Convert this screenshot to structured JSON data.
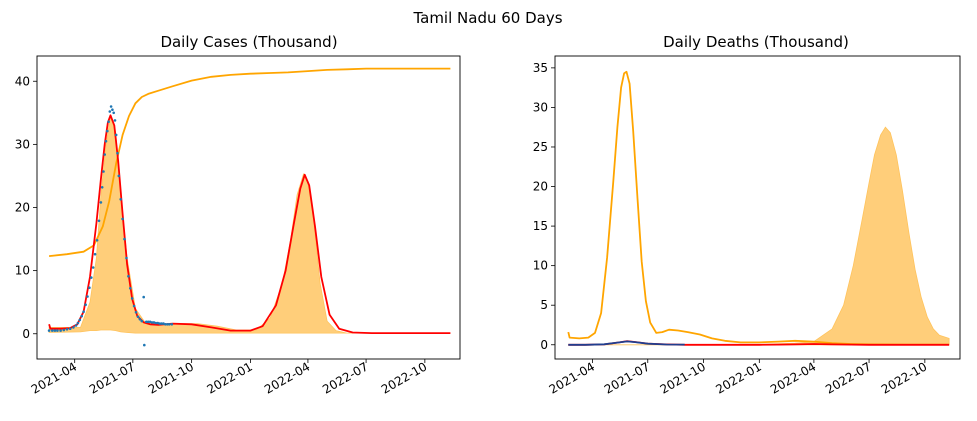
{
  "figure": {
    "suptitle": "Tamil Nadu 60 Days"
  },
  "colors": {
    "fill": "#ffce7a",
    "orange": "#ffa500",
    "red": "#ff0000",
    "dots": "#1f77b4",
    "navy": "#1f3f8f"
  },
  "chart_data": [
    {
      "type": "line",
      "title": "Daily Cases (Thousand)",
      "xlabel": "",
      "ylabel": "",
      "x_type": "date",
      "xlim": [
        "2021-02-01",
        "2022-11-25"
      ],
      "ylim": [
        -4,
        44
      ],
      "x_ticks": [
        "2021-04",
        "2021-07",
        "2021-10",
        "2022-01",
        "2022-04",
        "2022-07",
        "2022-10"
      ],
      "y_ticks": [
        0,
        10,
        20,
        30,
        40
      ],
      "grid": false,
      "fill_band": {
        "x": [
          "2021-02-20",
          "2021-04-10",
          "2021-04-25",
          "2021-05-05",
          "2021-05-12",
          "2021-05-20",
          "2021-05-27",
          "2021-06-04",
          "2021-06-12",
          "2021-06-22",
          "2021-07-05",
          "2021-07-20",
          "2021-08-10",
          "2021-09-10",
          "2021-10-10",
          "2021-11-10",
          "2021-12-10",
          "2022-01-10",
          "2022-02-01",
          "2022-02-20",
          "2022-03-05",
          "2022-03-15",
          "2022-03-25",
          "2022-04-01",
          "2022-04-10",
          "2022-04-20",
          "2022-05-01",
          "2022-05-15",
          "2022-06-01",
          "2022-07-01",
          "2022-09-01",
          "2022-11-10"
        ],
        "lower": [
          0.2,
          0.3,
          0.5,
          0.5,
          0.6,
          0.6,
          0.6,
          0.5,
          0.3,
          0.2,
          0.1,
          0.1,
          0.1,
          0.1,
          0.1,
          0.1,
          0.1,
          0.1,
          0.1,
          0.1,
          0.1,
          0.1,
          0.1,
          0.1,
          0.1,
          0.1,
          0.1,
          0.1,
          0.1,
          0.1,
          0.1,
          0.1
        ],
        "upper": [
          1.0,
          1.0,
          5.0,
          12.0,
          22.0,
          30.0,
          34.5,
          32.0,
          22.0,
          12.0,
          4.0,
          1.8,
          1.4,
          1.6,
          1.6,
          1.2,
          0.6,
          0.6,
          2.5,
          8.0,
          15.0,
          22.0,
          25.3,
          24.0,
          18.0,
          8.0,
          2.0,
          0.5,
          0.1,
          0.1,
          0.1,
          0.1
        ]
      },
      "series": [
        {
          "color": "#ffa500",
          "x": [
            "2021-02-20",
            "2021-03-20",
            "2021-04-15",
            "2021-05-01",
            "2021-05-15",
            "2021-05-25",
            "2021-06-05",
            "2021-06-15",
            "2021-06-25",
            "2021-07-05",
            "2021-07-15",
            "2021-07-25",
            "2021-08-10",
            "2021-09-01",
            "2021-10-01",
            "2021-11-01",
            "2021-12-01",
            "2022-01-01",
            "2022-02-01",
            "2022-03-01",
            "2022-04-01",
            "2022-05-01",
            "2022-06-01",
            "2022-07-01",
            "2022-08-01",
            "2022-09-01",
            "2022-10-01",
            "2022-11-10"
          ],
          "y": [
            12.3,
            12.6,
            13.0,
            14.0,
            17.0,
            21.0,
            27.0,
            31.5,
            34.5,
            36.5,
            37.5,
            38.0,
            38.5,
            39.2,
            40.1,
            40.7,
            41.0,
            41.2,
            41.3,
            41.4,
            41.6,
            41.8,
            41.9,
            42.0,
            42.0,
            42.0,
            42.0,
            42.0
          ]
        },
        {
          "color": "#ff0000",
          "x": [
            "2021-02-20",
            "2021-02-22",
            "2021-03-10",
            "2021-03-25",
            "2021-04-05",
            "2021-04-15",
            "2021-04-25",
            "2021-05-05",
            "2021-05-12",
            "2021-05-18",
            "2021-05-23",
            "2021-05-27",
            "2021-06-02",
            "2021-06-08",
            "2021-06-15",
            "2021-06-22",
            "2021-06-30",
            "2021-07-08",
            "2021-07-18",
            "2021-07-28",
            "2021-08-10",
            "2021-09-01",
            "2021-10-01",
            "2021-11-01",
            "2021-12-01",
            "2022-01-01",
            "2022-01-20",
            "2022-02-10",
            "2022-02-25",
            "2022-03-10",
            "2022-03-20",
            "2022-03-27",
            "2022-04-03",
            "2022-04-12",
            "2022-04-22",
            "2022-05-05",
            "2022-05-20",
            "2022-06-10",
            "2022-07-10",
            "2022-09-01",
            "2022-11-10"
          ],
          "y": [
            1.5,
            0.8,
            0.8,
            0.9,
            1.5,
            3.5,
            9.0,
            17.5,
            24.5,
            30.0,
            33.5,
            34.6,
            33.0,
            27.5,
            19.0,
            11.0,
            5.5,
            2.8,
            1.8,
            1.5,
            1.4,
            1.6,
            1.5,
            1.0,
            0.5,
            0.5,
            1.2,
            4.5,
            10.0,
            17.5,
            23.0,
            25.2,
            23.5,
            17.0,
            9.0,
            3.0,
            0.8,
            0.2,
            0.1,
            0.1,
            0.1
          ]
        }
      ],
      "scatter": {
        "color": "#1f77b4",
        "x": [
          "2021-02-20",
          "2021-02-25",
          "2021-03-01",
          "2021-03-05",
          "2021-03-10",
          "2021-03-15",
          "2021-03-20",
          "2021-03-25",
          "2021-03-30",
          "2021-04-03",
          "2021-04-06",
          "2021-04-09",
          "2021-04-12",
          "2021-04-15",
          "2021-04-18",
          "2021-04-21",
          "2021-04-24",
          "2021-04-27",
          "2021-04-30",
          "2021-05-03",
          "2021-05-06",
          "2021-05-09",
          "2021-05-12",
          "2021-05-14",
          "2021-05-16",
          "2021-05-18",
          "2021-05-20",
          "2021-05-22",
          "2021-05-24",
          "2021-05-26",
          "2021-05-28",
          "2021-05-30",
          "2021-06-01",
          "2021-06-03",
          "2021-06-05",
          "2021-06-07",
          "2021-06-09",
          "2021-06-12",
          "2021-06-15",
          "2021-06-18",
          "2021-06-21",
          "2021-06-24",
          "2021-06-27",
          "2021-06-30",
          "2021-07-03",
          "2021-07-06",
          "2021-07-09",
          "2021-07-12",
          "2021-07-15",
          "2021-07-18",
          "2021-07-19",
          "2021-07-22",
          "2021-07-25",
          "2021-07-28",
          "2021-07-31",
          "2021-08-03",
          "2021-08-06",
          "2021-08-09",
          "2021-08-12",
          "2021-08-15",
          "2021-08-18",
          "2021-08-21",
          "2021-08-24",
          "2021-08-27",
          "2021-08-31"
        ],
        "y": [
          0.5,
          0.5,
          0.5,
          0.5,
          0.5,
          0.6,
          0.7,
          0.8,
          1.0,
          1.3,
          1.7,
          2.2,
          2.8,
          3.5,
          4.6,
          5.9,
          7.3,
          8.9,
          10.5,
          12.6,
          14.8,
          17.9,
          20.8,
          23.2,
          25.7,
          28.4,
          30.5,
          32.1,
          33.6,
          35.2,
          36.0,
          35.5,
          35.0,
          33.8,
          31.5,
          28.6,
          25.0,
          21.3,
          18.2,
          15.0,
          12.0,
          9.1,
          7.2,
          5.6,
          4.4,
          3.4,
          2.7,
          2.3,
          2.0,
          5.8,
          -1.8,
          1.9,
          1.9,
          1.9,
          1.8,
          1.8,
          1.7,
          1.7,
          1.6,
          1.6,
          1.6,
          1.5,
          1.5,
          1.5,
          1.5
        ]
      }
    },
    {
      "type": "line",
      "title": "Daily Deaths (Thousand)",
      "xlabel": "",
      "ylabel": "",
      "x_type": "date",
      "xlim": [
        "2021-01-29",
        "2022-11-28"
      ],
      "ylim": [
        -1.8,
        36.5
      ],
      "x_ticks": [
        "2021-04",
        "2021-07",
        "2021-10",
        "2022-01",
        "2022-04",
        "2022-07",
        "2022-10"
      ],
      "y_ticks": [
        0,
        5,
        10,
        15,
        20,
        25,
        30,
        35
      ],
      "grid": false,
      "fill_band": {
        "x": [
          "2021-02-20",
          "2021-06-01",
          "2021-10-01",
          "2022-01-01",
          "2022-03-01",
          "2022-04-01",
          "2022-05-01",
          "2022-05-20",
          "2022-06-05",
          "2022-06-20",
          "2022-07-01",
          "2022-07-10",
          "2022-07-20",
          "2022-07-28",
          "2022-08-05",
          "2022-08-15",
          "2022-08-25",
          "2022-09-05",
          "2022-09-15",
          "2022-09-25",
          "2022-10-05",
          "2022-10-15",
          "2022-10-25",
          "2022-11-10"
        ],
        "lower": [
          0,
          0,
          0,
          0,
          0,
          0,
          0,
          0,
          0,
          0,
          0,
          0,
          0,
          0,
          0,
          0,
          0,
          0,
          0,
          0,
          0,
          0,
          0,
          0
        ],
        "upper": [
          0,
          0,
          0,
          0.05,
          0.2,
          0.4,
          2.0,
          5.0,
          10.0,
          16.0,
          20.5,
          24.0,
          26.5,
          27.5,
          26.8,
          24.0,
          19.5,
          14.0,
          9.5,
          6.0,
          3.5,
          2.0,
          1.2,
          0.8
        ]
      },
      "series": [
        {
          "color": "#ffa500",
          "x": [
            "2021-02-20",
            "2021-02-22",
            "2021-03-10",
            "2021-03-25",
            "2021-04-05",
            "2021-04-15",
            "2021-04-25",
            "2021-05-05",
            "2021-05-12",
            "2021-05-18",
            "2021-05-23",
            "2021-05-27",
            "2021-06-01",
            "2021-06-07",
            "2021-06-14",
            "2021-06-21",
            "2021-06-28",
            "2021-07-05",
            "2021-07-15",
            "2021-07-25",
            "2021-08-05",
            "2021-08-20",
            "2021-09-05",
            "2021-09-25",
            "2021-10-15",
            "2021-11-05",
            "2021-12-01",
            "2022-01-01",
            "2022-02-01",
            "2022-03-01",
            "2022-04-01",
            "2022-05-01",
            "2022-06-01",
            "2022-07-01",
            "2022-09-01",
            "2022-11-10"
          ],
          "y": [
            1.6,
            0.9,
            0.8,
            0.9,
            1.5,
            4.0,
            11.0,
            20.5,
            27.5,
            32.5,
            34.3,
            34.5,
            33.0,
            27.0,
            18.5,
            10.5,
            5.5,
            2.8,
            1.5,
            1.6,
            1.9,
            1.8,
            1.6,
            1.3,
            0.8,
            0.5,
            0.3,
            0.3,
            0.4,
            0.5,
            0.4,
            0.2,
            0.1,
            0.05,
            0.02,
            0.02
          ]
        },
        {
          "color": "#ff0000",
          "x": [
            "2021-02-20",
            "2021-03-20",
            "2021-04-20",
            "2021-05-15",
            "2021-05-28",
            "2021-06-10",
            "2021-07-01",
            "2021-08-01",
            "2021-09-01",
            "2021-10-01",
            "2021-11-01",
            "2021-12-01",
            "2022-01-01",
            "2022-02-01",
            "2022-03-01",
            "2022-04-01",
            "2022-05-01",
            "2022-06-01",
            "2022-07-01",
            "2022-09-01",
            "2022-11-10"
          ],
          "y": [
            0.0,
            0.0,
            0.05,
            0.3,
            0.45,
            0.35,
            0.15,
            0.05,
            0.0,
            0.0,
            0.0,
            0.0,
            0.0,
            0.02,
            0.05,
            0.1,
            0.05,
            0.02,
            0.0,
            0.0,
            0.0
          ]
        },
        {
          "color": "#1f3f8f",
          "x": [
            "2021-02-20",
            "2021-03-20",
            "2021-04-20",
            "2021-05-15",
            "2021-05-28",
            "2021-06-10",
            "2021-07-01",
            "2021-08-01",
            "2021-08-31"
          ],
          "y": [
            0.0,
            0.0,
            0.06,
            0.3,
            0.42,
            0.33,
            0.13,
            0.03,
            0.02
          ]
        }
      ]
    }
  ]
}
